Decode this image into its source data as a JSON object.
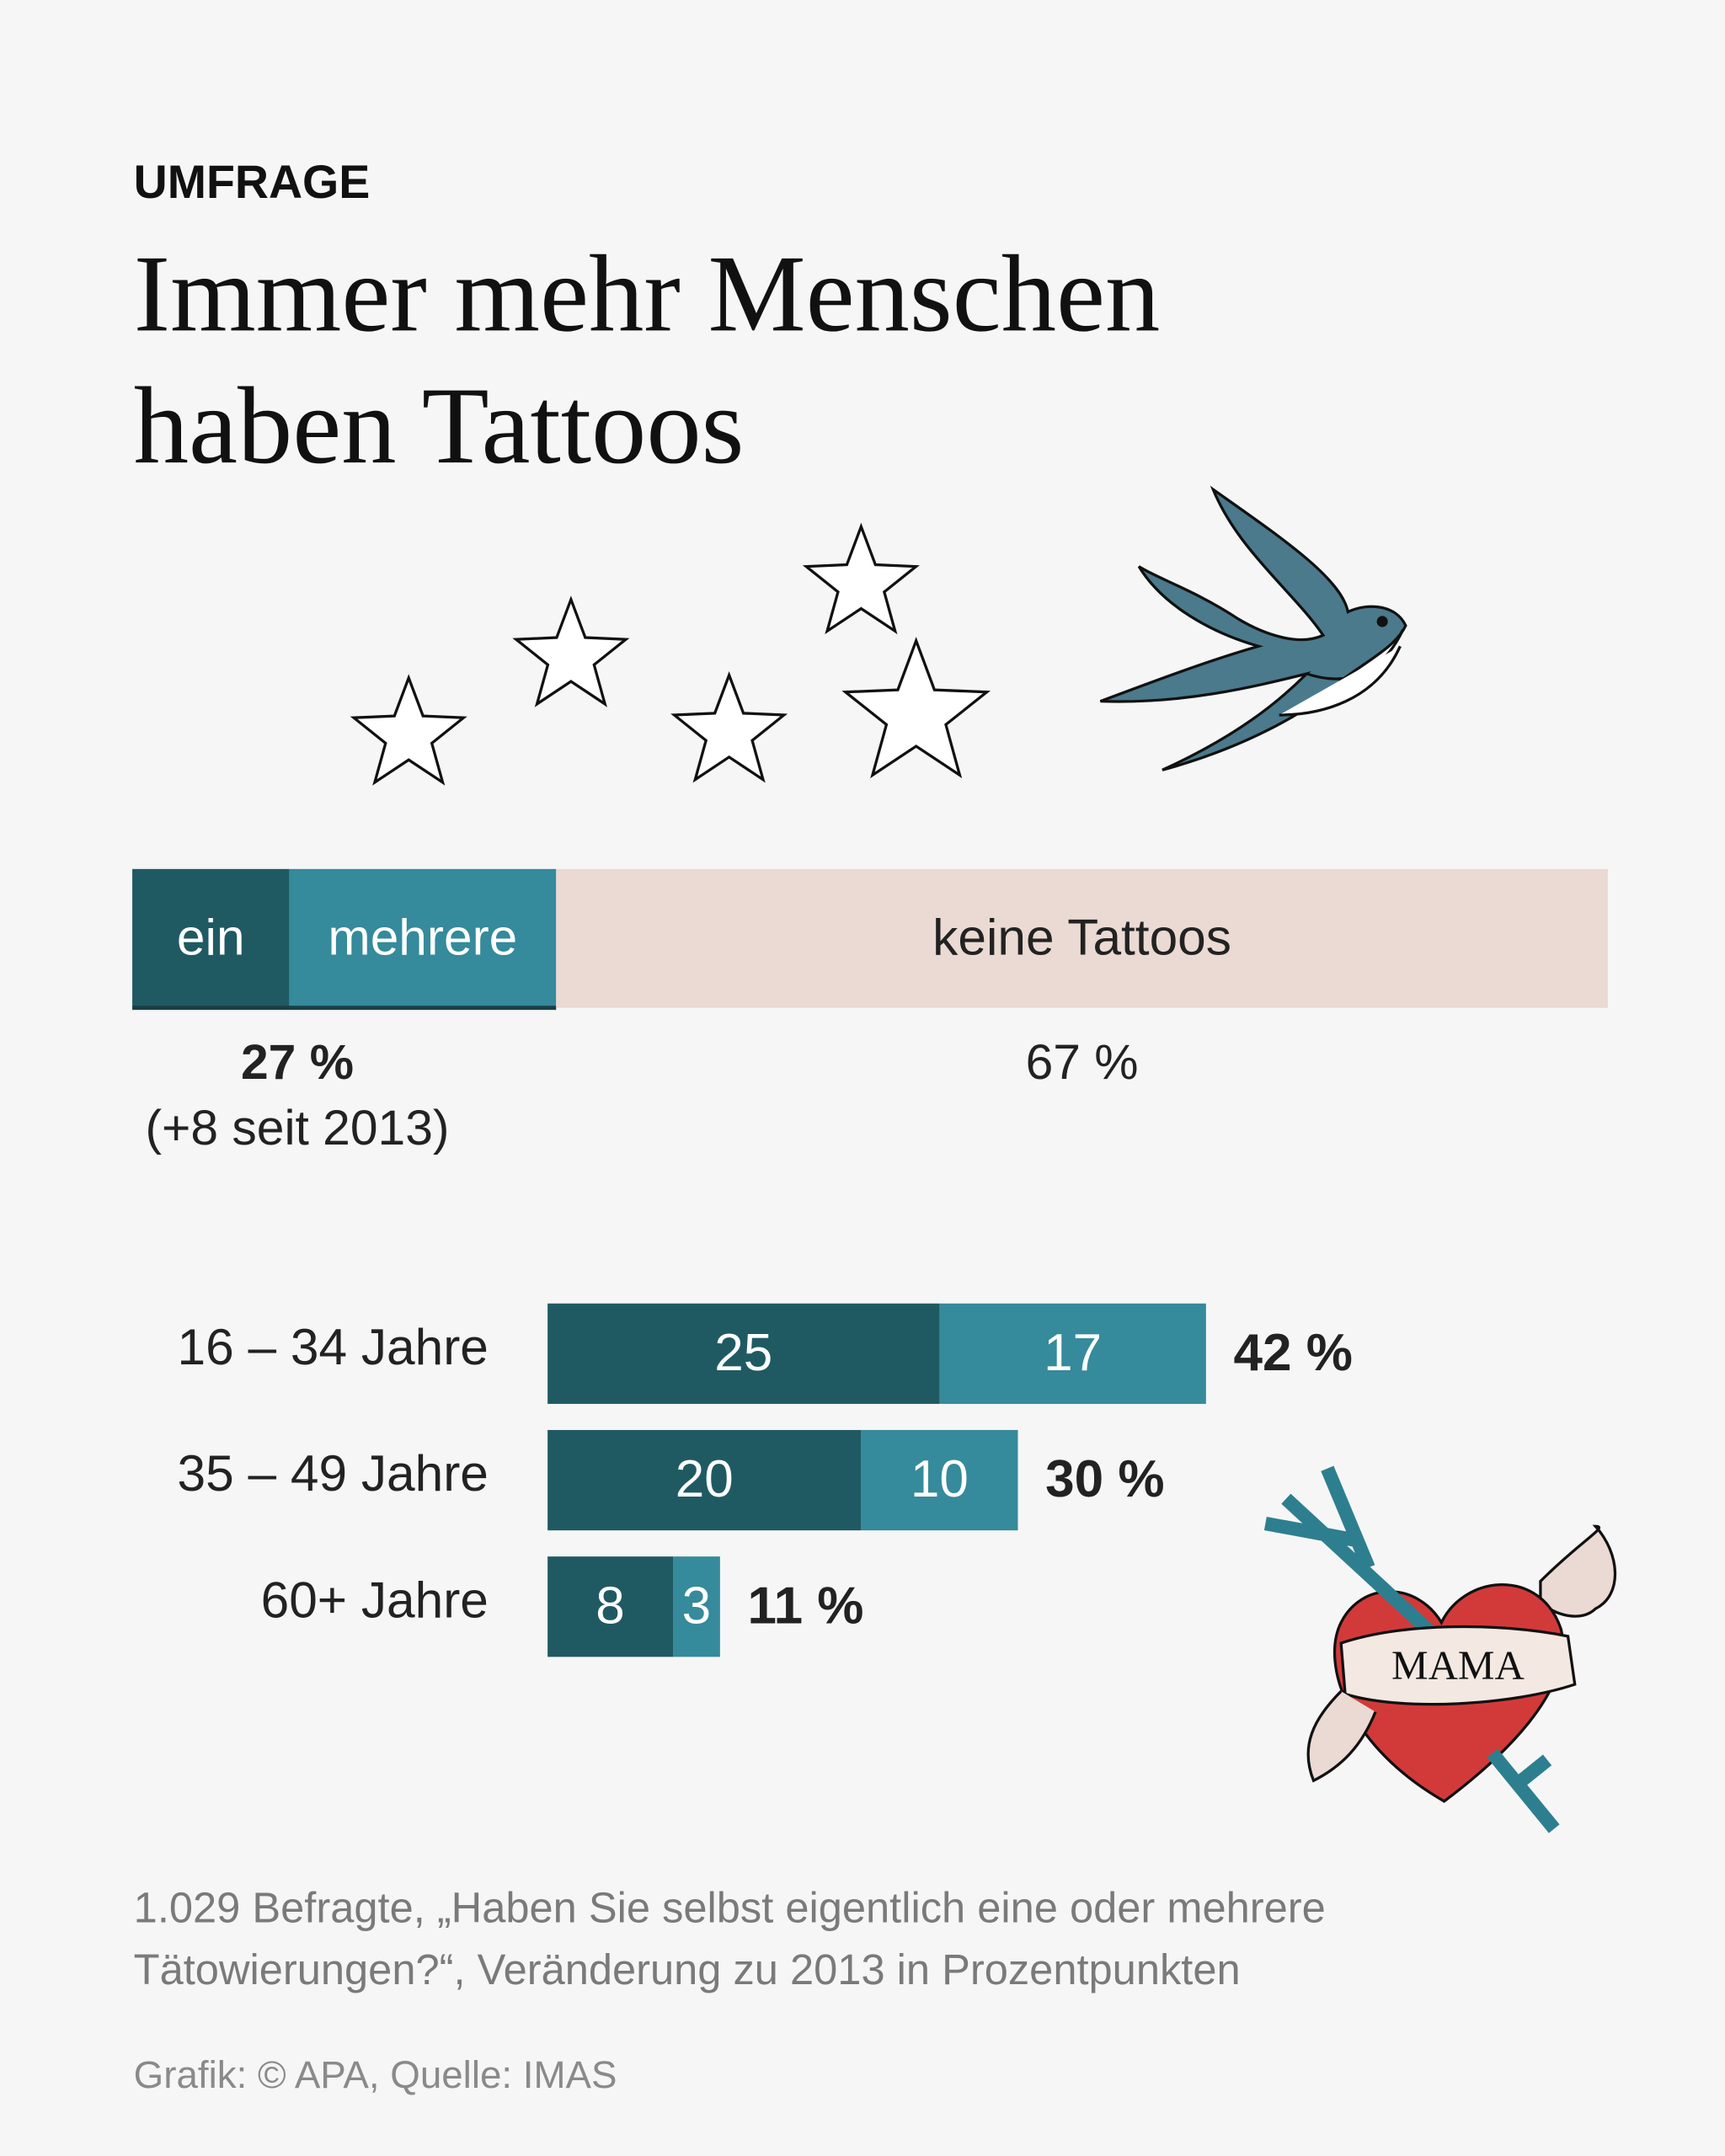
{
  "header": {
    "kicker": "UMFRAGE",
    "title_lines": [
      "Immer mehr Menschen",
      "haben Tattoos"
    ]
  },
  "chart_data": [
    {
      "type": "stacked-bar-single",
      "series": [
        {
          "name": "ein",
          "color": "#1f5a63",
          "values": [
            10
          ]
        },
        {
          "name": "mehrere",
          "color": "#358a9b",
          "values": [
            17
          ]
        },
        {
          "name": "keine Tattoos",
          "color": "#eadad3",
          "values": [
            67
          ]
        }
      ],
      "totals": [
        27,
        67
      ],
      "total_labels": [
        "27 %",
        "67 %"
      ],
      "annotation": "(+8 seit 2013)"
    },
    {
      "type": "stacked-bar-horizontal",
      "categories": [
        "16 – 34 Jahre",
        "35 – 49 Jahre",
        "60+ Jahre"
      ],
      "series": [
        {
          "color": "#1f5a63",
          "values": [
            25,
            20,
            8
          ]
        },
        {
          "color": "#358a9b",
          "values": [
            17,
            10,
            3
          ]
        }
      ],
      "totals": [
        42,
        30,
        11
      ],
      "total_labels": [
        "42 %",
        "30 %",
        "11 %"
      ]
    }
  ],
  "illustration_text": "MAMA",
  "note_lines": [
    "1.029 Befragte, „Haben Sie selbst eigentlich eine oder mehrere",
    "Tätowierungen?“, Veränderung zu 2013 in Prozentpunkten"
  ],
  "source": "Grafik: © APA, Quelle: IMAS"
}
